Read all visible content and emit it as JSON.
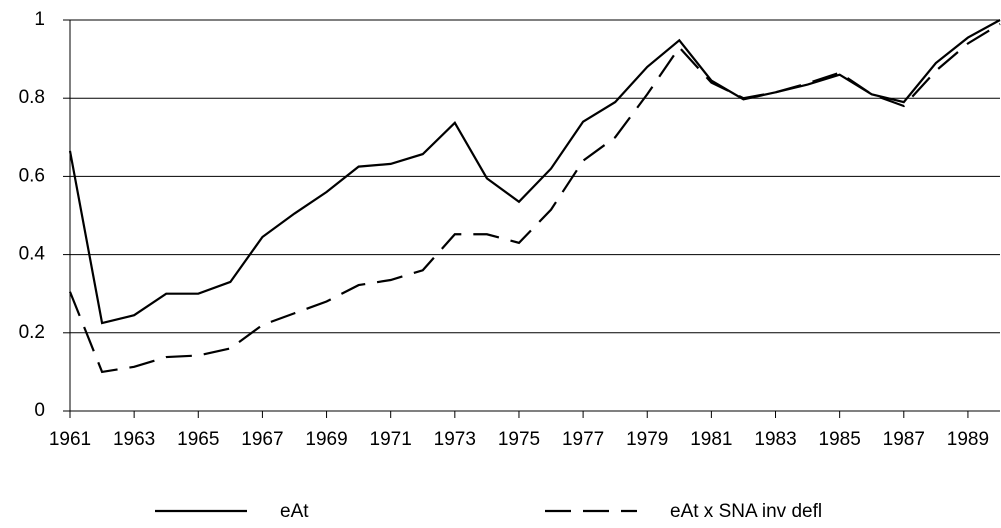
{
  "chart_data": {
    "type": "line",
    "x": [
      1961,
      1962,
      1963,
      1964,
      1965,
      1966,
      1967,
      1968,
      1969,
      1970,
      1971,
      1972,
      1973,
      1974,
      1975,
      1976,
      1977,
      1978,
      1979,
      1980,
      1981,
      1982,
      1983,
      1984,
      1985,
      1986,
      1987,
      1988,
      1989,
      1990
    ],
    "series": [
      {
        "name": "eAt",
        "color": "#000000",
        "dash": false,
        "values": [
          0.665,
          0.225,
          0.245,
          0.3,
          0.3,
          0.33,
          0.445,
          0.505,
          0.56,
          0.625,
          0.632,
          0.657,
          0.737,
          0.595,
          0.535,
          0.62,
          0.74,
          0.79,
          0.88,
          0.948,
          0.845,
          0.797,
          0.815,
          0.835,
          0.86,
          0.81,
          0.79,
          0.89,
          0.955,
          1.0
        ]
      },
      {
        "name": "eAt x SNA inv defl",
        "color": "#000000",
        "dash": true,
        "values": [
          0.305,
          0.1,
          0.113,
          0.138,
          0.142,
          0.16,
          0.22,
          0.25,
          0.28,
          0.322,
          0.335,
          0.36,
          0.452,
          0.452,
          0.43,
          0.515,
          0.64,
          0.7,
          0.81,
          0.93,
          0.84,
          0.8,
          0.815,
          0.838,
          0.865,
          0.81,
          0.78,
          0.87,
          0.94,
          0.99
        ]
      }
    ],
    "xlim": [
      1961,
      1990
    ],
    "xticks": [
      1961,
      1963,
      1965,
      1967,
      1969,
      1971,
      1973,
      1975,
      1977,
      1979,
      1981,
      1983,
      1985,
      1987,
      1989
    ],
    "ylim": [
      0,
      1
    ],
    "yticks": [
      0,
      0.2,
      0.4,
      0.6,
      0.8,
      1
    ],
    "grid": true,
    "legend": "bottom"
  }
}
